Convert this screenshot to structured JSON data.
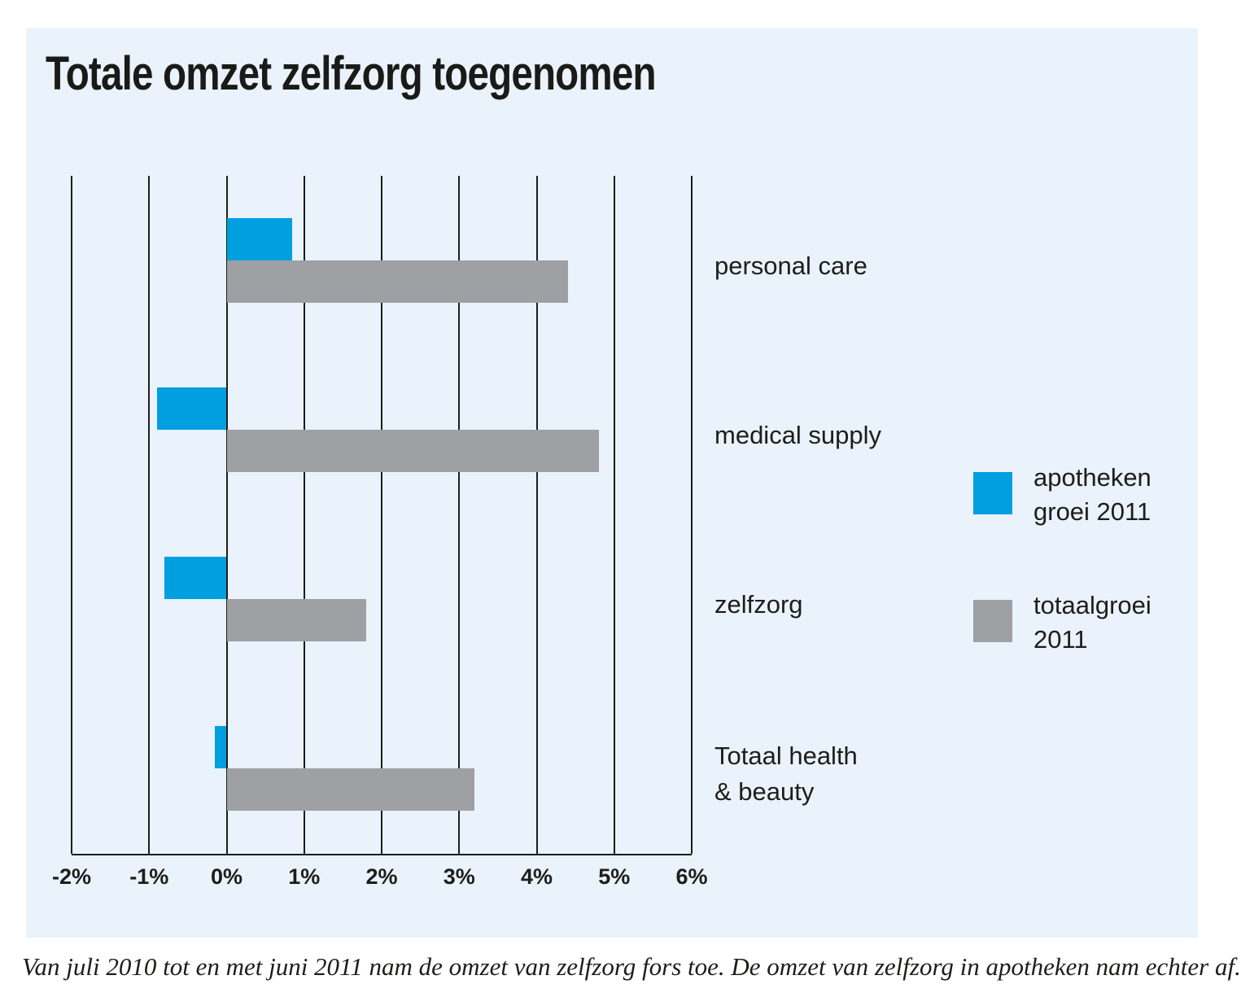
{
  "colors": {
    "page_background": "#ffffff",
    "panel_background": "#eaf2fb",
    "text": "#1d1d1b",
    "accent_blue": "#009fe0",
    "bar_gray": "#9ea0a3",
    "gridline": "#1d1d1b"
  },
  "caption": "Van juli 2010 tot en met juni 2011 nam de omzet van zelfzorg fors toe. De omzet van zelfzorg in apotheken nam echter af.",
  "chart_data": {
    "type": "bar",
    "orientation": "horizontal",
    "title": "Totale omzet zelfzorg toegenomen",
    "categories": [
      "personal care",
      "medical supply",
      "zelfzorg",
      "Totaal health\n& beauty"
    ],
    "series": [
      {
        "name": "apotheken groei 2011",
        "color": "#009fe0",
        "values": [
          0.85,
          -0.9,
          -0.8,
          -0.15
        ]
      },
      {
        "name": "totaalgroei 2011",
        "color": "#9ea0a3",
        "values": [
          4.4,
          4.8,
          1.8,
          3.2
        ]
      }
    ],
    "x_ticks": [
      "-2%",
      "-1%",
      "0%",
      "1%",
      "2%",
      "3%",
      "4%",
      "5%",
      "6%"
    ],
    "xlim": [
      -2,
      6
    ],
    "unit": "percent",
    "grid": "vertical",
    "legend_position": "right"
  }
}
